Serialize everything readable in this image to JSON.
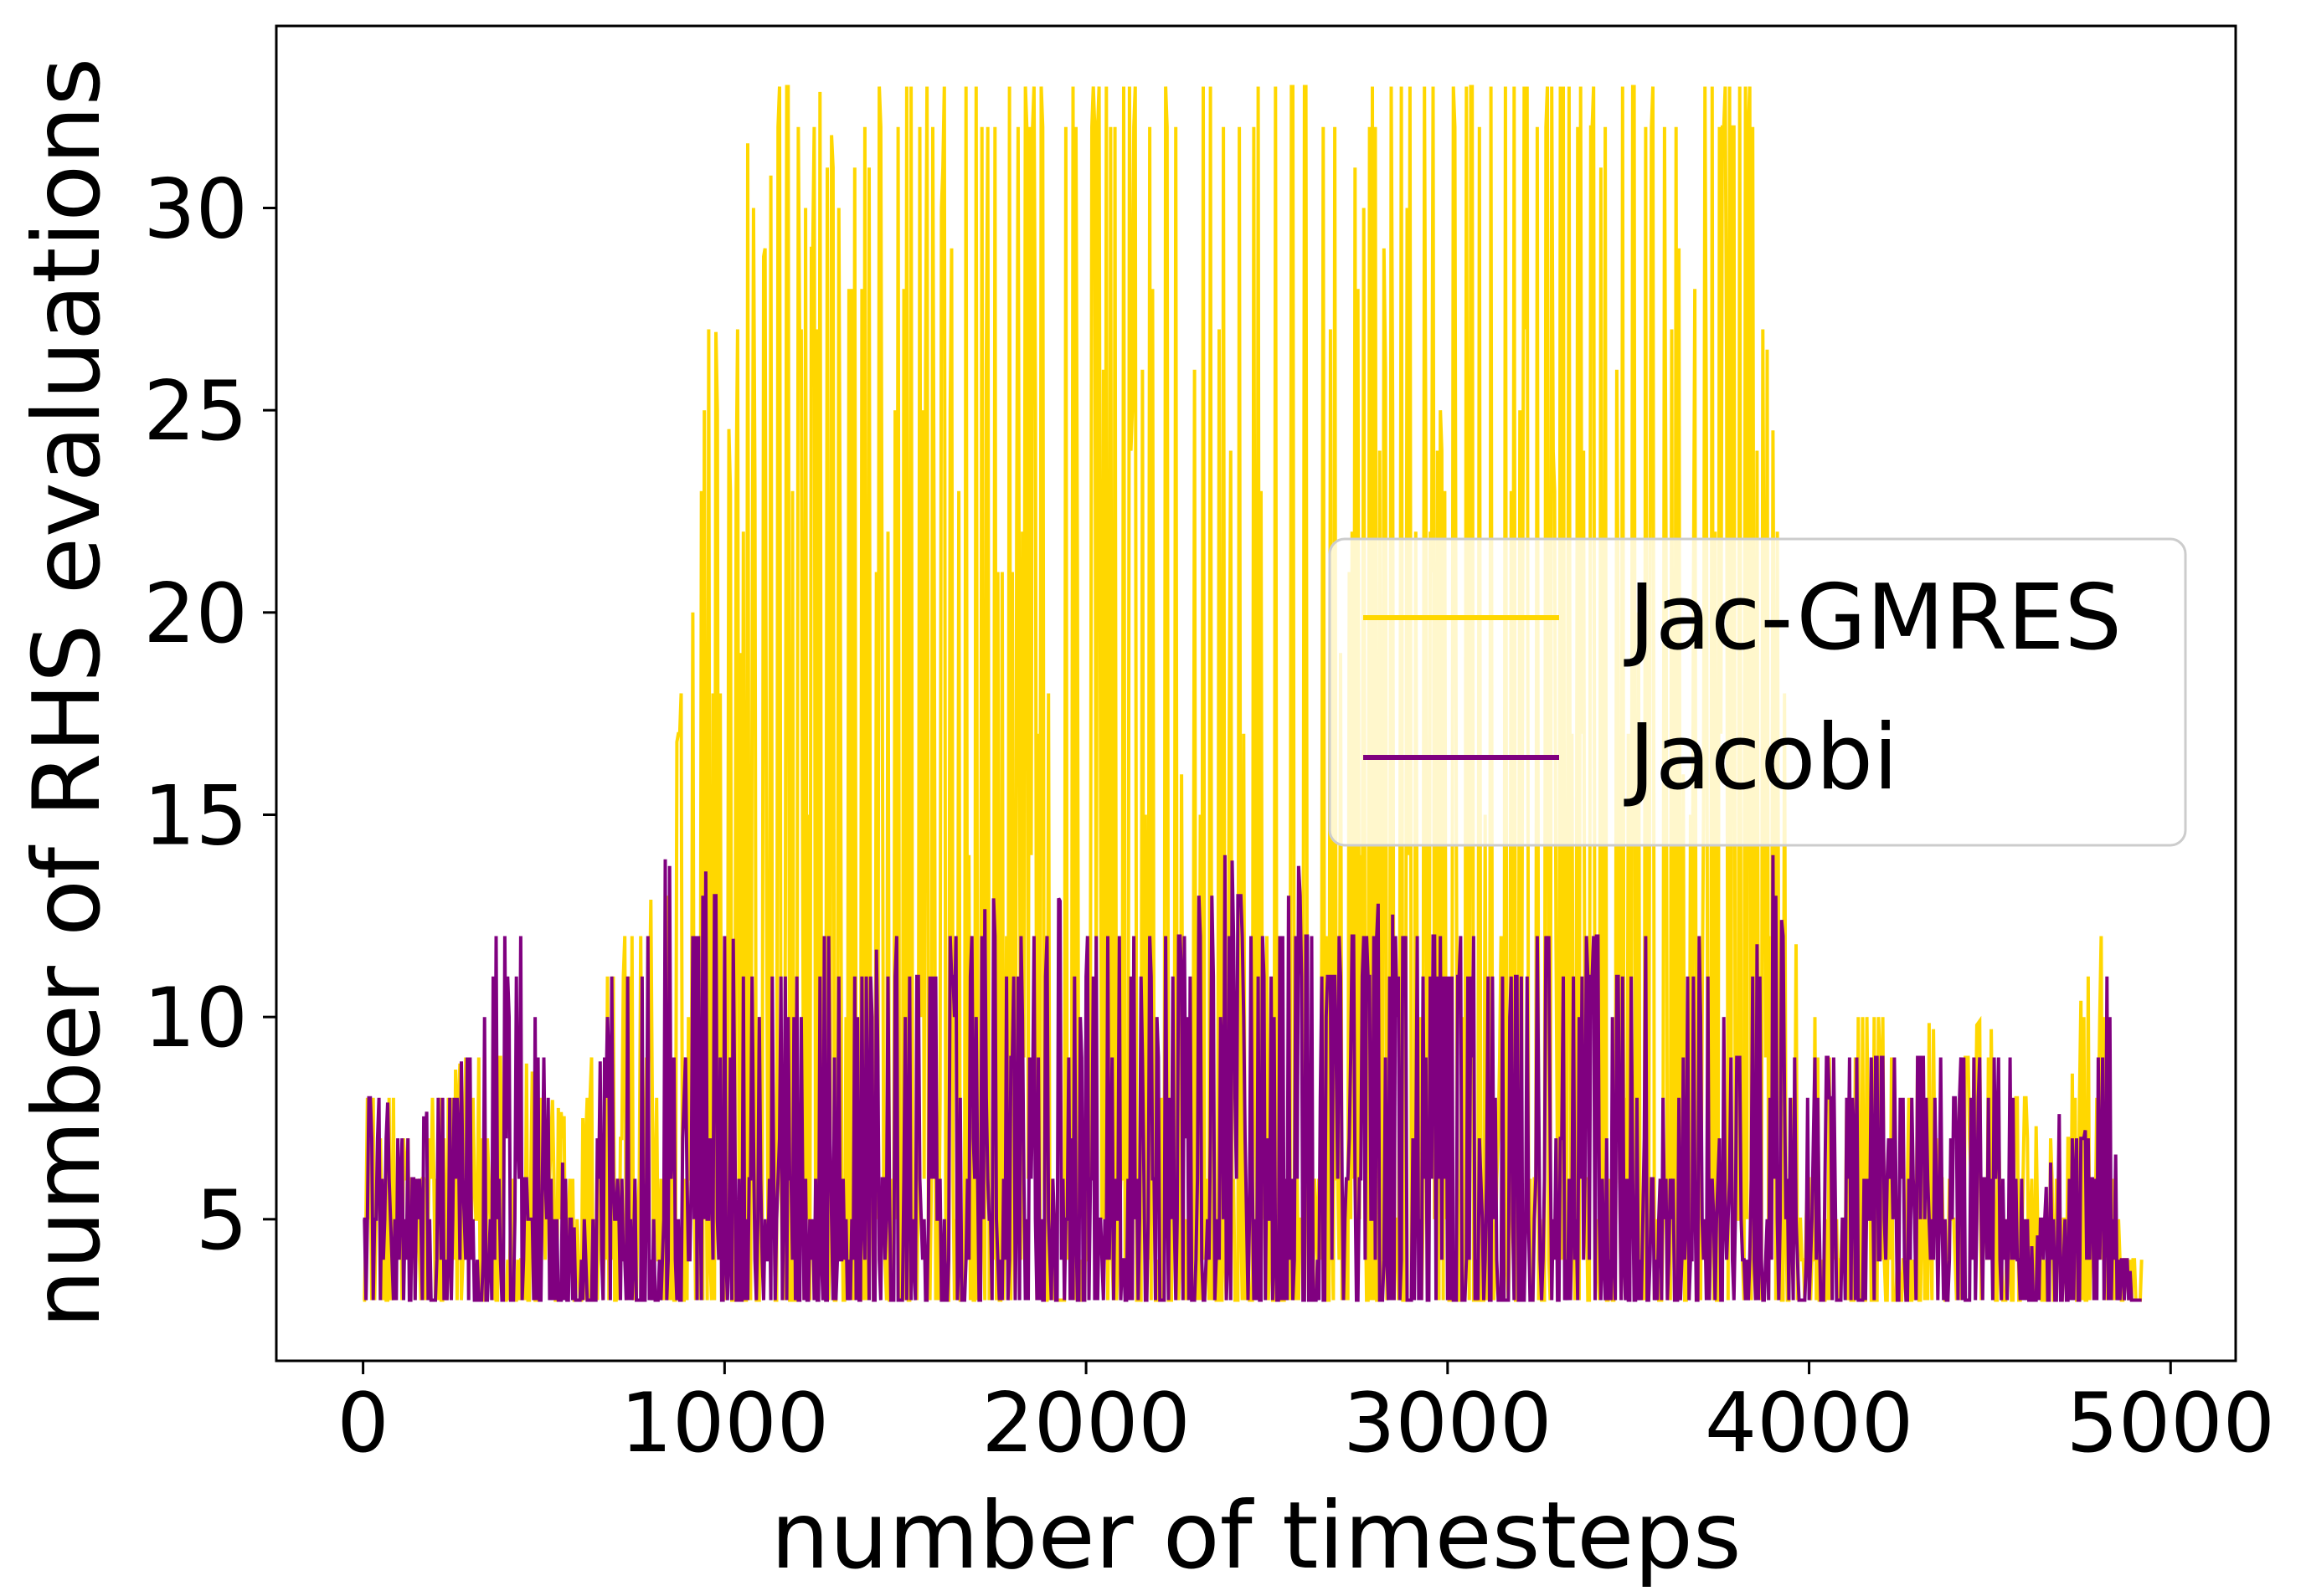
{
  "chart_data": {
    "type": "line",
    "xlabel": "number of timesteps",
    "ylabel": "number of RHS evaluations",
    "xlim": [
      -240,
      5180
    ],
    "ylim": [
      1.5,
      34.5
    ],
    "xticks": [
      0,
      1000,
      2000,
      3000,
      4000,
      5000
    ],
    "yticks": [
      5,
      10,
      15,
      20,
      25,
      30
    ],
    "legend_position": "center-right",
    "grid": false,
    "series": [
      {
        "name": "Jac-GMRES",
        "color": "#FFD700",
        "x": [
          0,
          60,
          130,
          200,
          280,
          360,
          440,
          520,
          600,
          680,
          760,
          840,
          900,
          930,
          960,
          990,
          1020,
          1060,
          1100,
          1150,
          1200,
          1260,
          1320,
          1380,
          1440,
          1500,
          1560,
          1620,
          1680,
          1740,
          1800,
          1860,
          1920,
          1980,
          2040,
          2100,
          2160,
          2220,
          2280,
          2340,
          2400,
          2460,
          2520,
          2580,
          2640,
          2700,
          2760,
          2820,
          2880,
          2940,
          3000,
          3060,
          3120,
          3180,
          3240,
          3300,
          3360,
          3420,
          3480,
          3540,
          3600,
          3660,
          3720,
          3780,
          3840,
          3880,
          3920,
          3960,
          4000,
          4080,
          4160,
          4240,
          4320,
          4400,
          4480,
          4560,
          4640,
          4720,
          4800,
          4830,
          4860,
          4900,
          4920
        ],
        "y_min": [
          3,
          3,
          3,
          3,
          3,
          3,
          3,
          3,
          3,
          3,
          3,
          3,
          3,
          3,
          3,
          3,
          3,
          3,
          3,
          3,
          3,
          3,
          3,
          3,
          3,
          3,
          3,
          3,
          3,
          3,
          3,
          3,
          3,
          3,
          3,
          3,
          3,
          3,
          3,
          3,
          3,
          3,
          3,
          3,
          3,
          3,
          3,
          3,
          3,
          3,
          3,
          3,
          3,
          3,
          3,
          3,
          3,
          3,
          3,
          3,
          3,
          3,
          3,
          3,
          3,
          3,
          3,
          3,
          3,
          3,
          3,
          3,
          3,
          3,
          3,
          3,
          3,
          3,
          3,
          3,
          3,
          3,
          3
        ],
        "y_max": [
          8,
          8,
          8,
          8,
          9,
          9,
          9,
          8,
          7,
          12,
          12,
          14,
          20,
          23,
          28,
          26,
          24,
          32,
          28,
          33,
          33,
          33,
          31,
          33,
          33,
          33,
          33,
          33,
          33,
          33,
          33,
          33,
          33,
          33,
          33,
          33,
          33,
          33,
          33,
          33,
          33,
          33,
          33,
          33,
          33,
          33,
          33,
          33,
          33,
          33,
          33,
          33,
          33,
          33,
          33,
          33,
          33,
          33,
          33,
          33,
          33,
          33,
          33,
          33,
          33,
          27,
          22,
          12,
          10,
          10,
          10,
          10,
          10,
          9,
          10,
          9,
          7,
          8,
          14,
          12,
          4,
          4,
          4
        ]
      },
      {
        "name": "Jacobi",
        "color": "#800080",
        "x": [
          0,
          60,
          130,
          200,
          280,
          360,
          440,
          520,
          600,
          680,
          760,
          840,
          900,
          960,
          1020,
          1080,
          1140,
          1200,
          1260,
          1320,
          1380,
          1440,
          1500,
          1560,
          1620,
          1680,
          1740,
          1800,
          1860,
          1920,
          1980,
          2040,
          2100,
          2160,
          2220,
          2280,
          2340,
          2400,
          2460,
          2520,
          2580,
          2640,
          2700,
          2760,
          2820,
          2880,
          2940,
          3000,
          3060,
          3120,
          3180,
          3240,
          3300,
          3360,
          3420,
          3480,
          3540,
          3600,
          3660,
          3720,
          3780,
          3840,
          3900,
          3960,
          4020,
          4080,
          4140,
          4200,
          4260,
          4320,
          4380,
          4440,
          4500,
          4560,
          4620,
          4700,
          4760,
          4800,
          4830,
          4850,
          4900,
          4920
        ],
        "y_min": [
          3,
          3,
          3,
          3,
          3,
          3,
          3,
          3,
          3,
          3,
          3,
          3,
          3,
          3,
          3,
          3,
          3,
          3,
          3,
          3,
          3,
          3,
          3,
          3,
          3,
          3,
          3,
          3,
          3,
          3,
          3,
          3,
          3,
          3,
          3,
          3,
          3,
          3,
          3,
          3,
          3,
          3,
          3,
          3,
          3,
          3,
          3,
          3,
          3,
          3,
          3,
          3,
          3,
          3,
          3,
          3,
          3,
          3,
          3,
          3,
          3,
          3,
          3,
          3,
          3,
          3,
          3,
          3,
          3,
          3,
          3,
          3,
          3,
          3,
          3,
          3,
          3,
          3,
          3,
          3,
          3,
          3
        ],
        "y_max": [
          8,
          8,
          7,
          8,
          9,
          12,
          12,
          8,
          4,
          11,
          12,
          14,
          12,
          14,
          12,
          11,
          12,
          11,
          12,
          12,
          11,
          12,
          12,
          12,
          12,
          12,
          13,
          12,
          12,
          13,
          12,
          12,
          12,
          12,
          12,
          12,
          14,
          14,
          12,
          12,
          14,
          12,
          12,
          12,
          13,
          12,
          12,
          12,
          12,
          12,
          12,
          12,
          12,
          12,
          12,
          12,
          12,
          12,
          12,
          12,
          10,
          11,
          14,
          10,
          9,
          9,
          9,
          9,
          9,
          9,
          9,
          9,
          9,
          9,
          4,
          8,
          7,
          9,
          12,
          6,
          3,
          3
        ]
      }
    ]
  }
}
